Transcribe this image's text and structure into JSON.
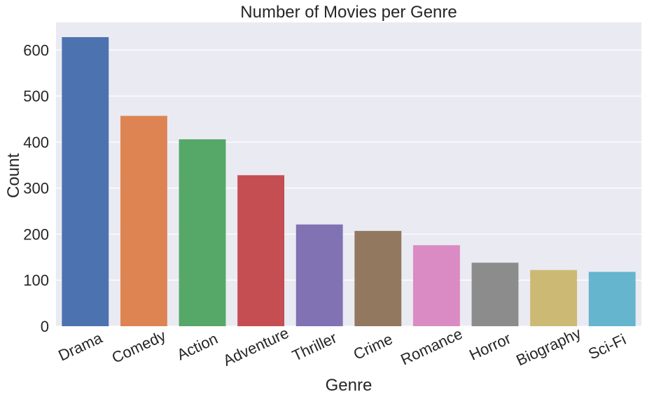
{
  "chart_data": {
    "type": "bar",
    "title": "Number of Movies per Genre",
    "xlabel": "Genre",
    "ylabel": "Count",
    "categories": [
      "Drama",
      "Comedy",
      "Action",
      "Adventure",
      "Thriller",
      "Crime",
      "Romance",
      "Horror",
      "Biography",
      "Sci-Fi"
    ],
    "values": [
      628,
      457,
      406,
      328,
      221,
      207,
      176,
      138,
      122,
      118
    ],
    "colors": [
      "#4c72b0",
      "#dd8452",
      "#55a868",
      "#c44e52",
      "#8172b3",
      "#937860",
      "#da8bc3",
      "#8c8c8c",
      "#ccb974",
      "#64b5cd"
    ],
    "ylim": [
      0,
      660
    ],
    "yticks": [
      0,
      100,
      200,
      300,
      400,
      500,
      600
    ],
    "grid": true,
    "background": "#eaeaf2",
    "gridcolor": "#ffffff"
  }
}
